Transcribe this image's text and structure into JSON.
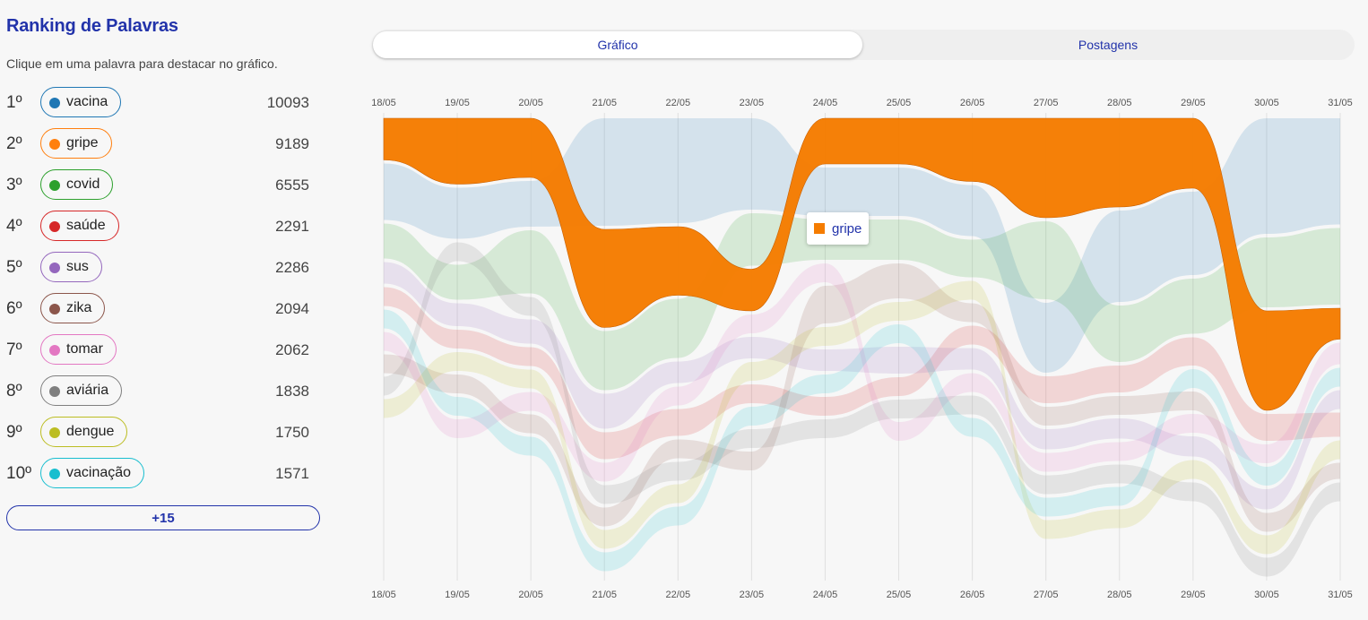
{
  "panel": {
    "title": "Ranking de Palavras",
    "subtitle": "Clique em uma palavra para destacar no gráfico.",
    "more_label": "+15"
  },
  "ranking": [
    {
      "pos": "1º",
      "word": "vacina",
      "count": "10093",
      "color": "#1f77b4"
    },
    {
      "pos": "2º",
      "word": "gripe",
      "count": "9189",
      "color": "#ff7f0e"
    },
    {
      "pos": "3º",
      "word": "covid",
      "count": "6555",
      "color": "#2ca02c"
    },
    {
      "pos": "4º",
      "word": "saúde",
      "count": "2291",
      "color": "#d62728"
    },
    {
      "pos": "5º",
      "word": "sus",
      "count": "2286",
      "color": "#9467bd"
    },
    {
      "pos": "6º",
      "word": "zika",
      "count": "2094",
      "color": "#8c564b"
    },
    {
      "pos": "7º",
      "word": "tomar",
      "count": "2062",
      "color": "#e377c2"
    },
    {
      "pos": "8º",
      "word": "aviária",
      "count": "1838",
      "color": "#7f7f7f"
    },
    {
      "pos": "9º",
      "word": "dengue",
      "count": "1750",
      "color": "#bcbd22"
    },
    {
      "pos": "10º",
      "word": "vacinação",
      "count": "1571",
      "color": "#17becf"
    }
  ],
  "tabs": [
    {
      "label": "Gráfico",
      "active": true
    },
    {
      "label": "Postagens",
      "active": false
    }
  ],
  "tooltip": {
    "label": "gripe",
    "color": "#f57c00"
  },
  "chart_data": {
    "type": "area",
    "subtype": "bump-streamgraph",
    "x": [
      "18/05",
      "19/05",
      "20/05",
      "21/05",
      "22/05",
      "23/05",
      "24/05",
      "25/05",
      "26/05",
      "27/05",
      "28/05",
      "29/05",
      "30/05",
      "31/05"
    ],
    "highlighted": "gripe",
    "value_unit": "relative share of mentions per day (estimated from band thickness, 0–10 scale)",
    "series": [
      {
        "name": "vacina",
        "color": "#1f77b4",
        "values": [
          4.2,
          3.8,
          3.4,
          8.0,
          7.8,
          6.8,
          3.6,
          3.6,
          3.8,
          5.2,
          6.8,
          6.2,
          8.6,
          7.9
        ]
      },
      {
        "name": "gripe",
        "color": "#f57c00",
        "values": [
          3.1,
          4.9,
          4.4,
          7.3,
          5.1,
          3.1,
          3.4,
          3.4,
          4.7,
          7.4,
          6.6,
          5.2,
          7.4,
          2.3
        ]
      },
      {
        "name": "covid",
        "color": "#2ca02c",
        "values": [
          2.6,
          2.6,
          4.7,
          4.4,
          4.4,
          3.9,
          3.0,
          3.0,
          2.8,
          5.8,
          4.2,
          4.1,
          5.2,
          5.7
        ]
      },
      {
        "name": "saúde",
        "color": "#d62728",
        "values": [
          1.4,
          1.4,
          1.4,
          2.0,
          2.0,
          1.4,
          1.4,
          1.4,
          1.4,
          2.0,
          2.0,
          2.1,
          2.0,
          1.8
        ]
      },
      {
        "name": "sus",
        "color": "#9467bd",
        "values": [
          1.6,
          1.7,
          1.8,
          2.6,
          1.6,
          1.6,
          1.6,
          2.0,
          1.6,
          1.5,
          1.5,
          1.5,
          1.5,
          1.4
        ]
      },
      {
        "name": "zika",
        "color": "#8c564b",
        "values": [
          1.4,
          1.4,
          1.4,
          1.4,
          1.4,
          1.4,
          2.8,
          2.6,
          1.4,
          1.4,
          1.4,
          1.4,
          1.4,
          1.2
        ]
      },
      {
        "name": "tomar",
        "color": "#e377c2",
        "values": [
          1.4,
          1.4,
          1.4,
          1.4,
          1.4,
          1.4,
          1.4,
          1.4,
          1.4,
          1.4,
          1.4,
          1.4,
          1.4,
          1.6
        ]
      },
      {
        "name": "aviária",
        "color": "#7f7f7f",
        "values": [
          1.4,
          1.4,
          1.4,
          1.4,
          1.4,
          1.4,
          1.4,
          1.4,
          1.4,
          1.4,
          1.4,
          1.4,
          1.4,
          1.4
        ]
      },
      {
        "name": "dengue",
        "color": "#bcbd22",
        "values": [
          1.4,
          1.4,
          1.4,
          1.4,
          1.4,
          1.4,
          1.4,
          1.4,
          1.4,
          1.4,
          1.4,
          1.4,
          1.4,
          1.4
        ]
      },
      {
        "name": "vacinação",
        "color": "#17becf",
        "values": [
          1.4,
          1.4,
          1.4,
          1.4,
          1.4,
          1.4,
          1.4,
          1.4,
          1.4,
          1.4,
          1.4,
          1.4,
          1.4,
          1.4
        ]
      }
    ],
    "rank_by_day": {
      "comment": "stacking order top-to-bottom per day, as word indices into series",
      "order": [
        [
          1,
          0,
          2,
          4,
          3,
          9,
          6,
          5,
          7,
          8
        ],
        [
          1,
          0,
          7,
          2,
          4,
          3,
          8,
          5,
          9,
          6
        ],
        [
          1,
          0,
          2,
          7,
          4,
          3,
          8,
          6,
          5,
          9
        ],
        [
          0,
          1,
          2,
          4,
          3,
          6,
          7,
          5,
          8,
          9
        ],
        [
          0,
          1,
          2,
          4,
          6,
          3,
          5,
          7,
          8,
          9
        ],
        [
          0,
          2,
          1,
          6,
          4,
          8,
          3,
          9,
          7,
          5
        ],
        [
          1,
          0,
          2,
          6,
          5,
          8,
          4,
          9,
          3,
          7
        ],
        [
          1,
          0,
          2,
          5,
          8,
          9,
          4,
          3,
          7,
          6
        ],
        [
          1,
          0,
          2,
          8,
          5,
          3,
          4,
          6,
          7,
          9
        ],
        [
          1,
          2,
          0,
          3,
          5,
          4,
          6,
          7,
          9,
          8
        ],
        [
          1,
          0,
          2,
          3,
          5,
          4,
          6,
          7,
          9,
          8
        ],
        [
          1,
          0,
          2,
          3,
          9,
          5,
          6,
          4,
          8,
          7
        ],
        [
          0,
          2,
          1,
          3,
          6,
          9,
          4,
          5,
          8,
          7
        ],
        [
          0,
          2,
          1,
          6,
          9,
          4,
          3,
          8,
          5,
          7
        ]
      ]
    },
    "grid": true
  }
}
